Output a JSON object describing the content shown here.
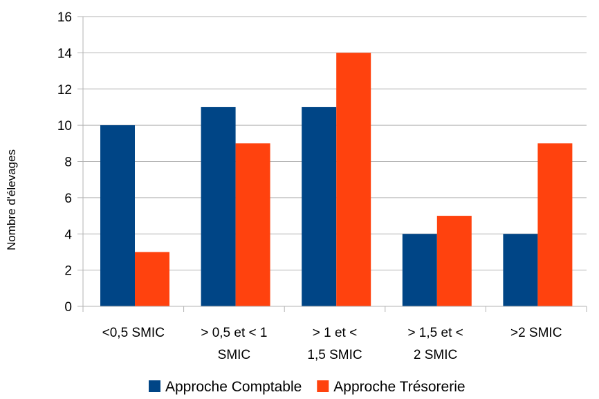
{
  "chart_data": {
    "type": "bar",
    "title": "",
    "xlabel": "",
    "ylabel": "Nombre d'élevages",
    "ylim": [
      0,
      16
    ],
    "yticks": [
      0,
      2,
      4,
      6,
      8,
      10,
      12,
      14,
      16
    ],
    "grid": true,
    "legend": "bottom",
    "categories": [
      [
        "<0,5 SMIC"
      ],
      [
        "> 0,5 et < 1",
        "SMIC"
      ],
      [
        "> 1  et <",
        "1,5 SMIC"
      ],
      [
        "> 1,5  et <",
        "2 SMIC"
      ],
      [
        ">2 SMIC"
      ]
    ],
    "series": [
      {
        "name": "Approche Comptable",
        "color": "#004586",
        "values": [
          10,
          11,
          11,
          4,
          4
        ]
      },
      {
        "name": "Approche Trésorerie",
        "color": "#ff420e",
        "values": [
          3,
          9,
          14,
          5,
          9
        ]
      }
    ]
  }
}
